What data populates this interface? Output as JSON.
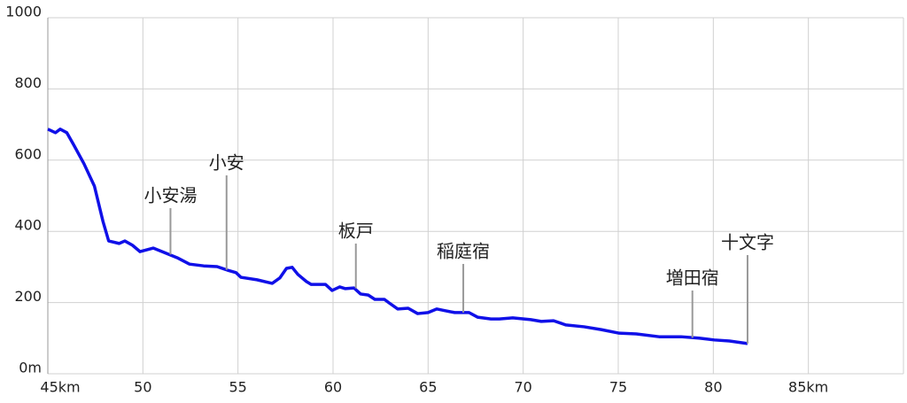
{
  "chart_data": {
    "type": "line",
    "xlim": [
      45,
      90
    ],
    "ylim": [
      0,
      1000
    ],
    "xticks": [
      {
        "value": 45,
        "label": "45km"
      },
      50,
      55,
      60,
      65,
      70,
      75,
      80,
      {
        "value": 85,
        "label": "85km"
      }
    ],
    "yticks": [
      {
        "value": 0,
        "label": "0m"
      },
      200,
      400,
      600,
      800,
      1000
    ],
    "grid": true,
    "series": [
      {
        "color": "#1010e8",
        "x": [
          45,
          45.4,
          45.65,
          46,
          46.35,
          46.9,
          47.45,
          47.9,
          48.2,
          48.75,
          49.05,
          49.45,
          49.85,
          50.2,
          50.55,
          51.1,
          51.8,
          52.45,
          53.2,
          53.9,
          54.45,
          54.9,
          55.15,
          56.0,
          56.8,
          57.2,
          57.55,
          57.85,
          58.15,
          58.6,
          58.85,
          59.6,
          59.95,
          60.35,
          60.65,
          61.1,
          61.45,
          61.85,
          62.2,
          62.7,
          62.95,
          63.4,
          63.95,
          64.45,
          65,
          65.45,
          65.9,
          66.4,
          67.15,
          67.6,
          68.3,
          68.75,
          69.45,
          70.4,
          70.95,
          71.6,
          72.25,
          73.2,
          74.1,
          75.05,
          75.95,
          77.15,
          78.3,
          79.25,
          80.05,
          80.85,
          81.8
        ],
        "values": [
          687,
          677,
          687,
          677,
          644,
          590,
          527,
          428,
          373,
          366,
          373,
          361,
          343,
          348,
          353,
          341,
          326,
          308,
          303,
          301,
          291,
          284,
          271,
          264,
          254,
          269,
          296,
          299,
          279,
          259,
          251,
          251,
          234,
          244,
          239,
          241,
          224,
          221,
          209,
          209,
          199,
          182,
          184,
          169,
          172,
          182,
          177,
          172,
          172,
          159,
          154,
          154,
          157,
          152,
          147,
          149,
          137,
          132,
          124,
          114,
          112,
          104,
          104,
          100,
          95,
          92,
          85
        ]
      }
    ],
    "annotations": [
      {
        "text": "小安湯",
        "x": 51.45,
        "y": 335
      },
      {
        "text": "小安",
        "x": 54.4,
        "y": 292
      },
      {
        "text": "板戸",
        "x": 61.2,
        "y": 240
      },
      {
        "text": "稲庭宿",
        "x": 66.85,
        "y": 172
      },
      {
        "text": "増田宿",
        "x": 78.9,
        "y": 101
      },
      {
        "text": "十文字",
        "x": 81.8,
        "y": 85
      }
    ]
  }
}
